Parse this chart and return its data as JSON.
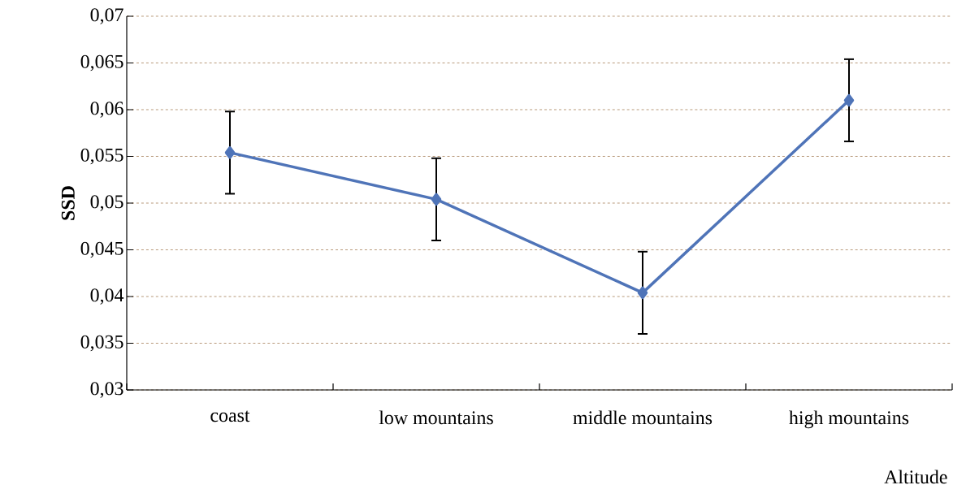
{
  "chart_data": {
    "type": "line",
    "xlabel": "Altitude",
    "ylabel": "SSD",
    "categories": [
      "coast",
      "low mountains",
      "middle mountains",
      "high mountains"
    ],
    "series": [
      {
        "color": "#4f74b8",
        "values": [
          0.0554,
          0.0504,
          0.0404,
          0.061
        ],
        "errors": [
          0.0044,
          0.0044,
          0.0044,
          0.0044
        ]
      }
    ],
    "ylim": [
      0.03,
      0.07
    ],
    "yticks": [
      {
        "value": 0.03,
        "label": "0,03"
      },
      {
        "value": 0.035,
        "label": "0,035"
      },
      {
        "value": 0.04,
        "label": "0,04"
      },
      {
        "value": 0.045,
        "label": "0,045"
      },
      {
        "value": 0.05,
        "label": "0,05"
      },
      {
        "value": 0.055,
        "label": "0,055"
      },
      {
        "value": 0.06,
        "label": "0,06"
      },
      {
        "value": 0.065,
        "label": "0,065"
      },
      {
        "value": 0.07,
        "label": "0,07"
      }
    ],
    "grid": "y",
    "marker": "diamond",
    "line_style": "solid"
  }
}
